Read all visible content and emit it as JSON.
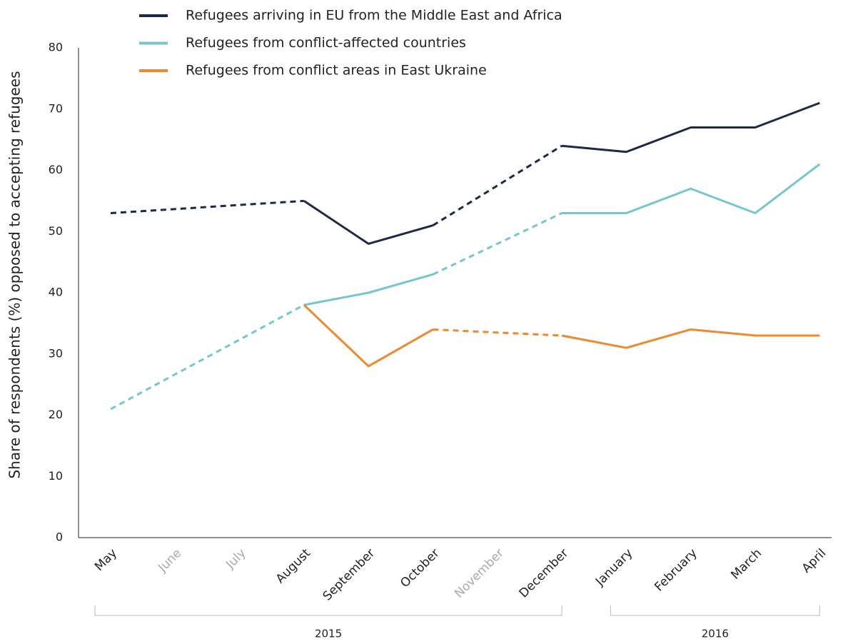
{
  "chart_data": {
    "type": "line",
    "ylabel": "Share of respondents (%) opposed to accepting refugees",
    "categories": [
      "May",
      "June",
      "July",
      "August",
      "September",
      "October",
      "November",
      "December",
      "January",
      "February",
      "March",
      "April"
    ],
    "category_label_colors": [
      "#222222",
      "#aaaaaa",
      "#aaaaaa",
      "#222222",
      "#222222",
      "#222222",
      "#aaaaaa",
      "#222222",
      "#222222",
      "#222222",
      "#222222",
      "#222222"
    ],
    "groups": [
      {
        "label": "2015",
        "start": 0,
        "end": 7
      },
      {
        "label": "2016",
        "start": 8,
        "end": 11
      }
    ],
    "series": [
      {
        "name": "Refugees arriving in EU from the Middle East and Africa",
        "color": "#1b2a47",
        "values": [
          53,
          null,
          null,
          55,
          48,
          51,
          null,
          64,
          63,
          67,
          67,
          71
        ]
      },
      {
        "name": "Refugees from conflict-affected countries",
        "color": "#74c7cc",
        "values": [
          21,
          null,
          null,
          38,
          40,
          43,
          null,
          53,
          53,
          57,
          53,
          61
        ]
      },
      {
        "name": "Refugees from conflict areas in East Ukraine",
        "color": "#ee8a2e",
        "values": [
          null,
          null,
          null,
          38,
          28,
          34,
          null,
          33,
          31,
          34,
          33,
          33
        ]
      }
    ],
    "gap_style": "dashed",
    "ylim": [
      0,
      80
    ],
    "yticks": [
      0,
      10,
      20,
      30,
      40,
      50,
      60,
      70,
      80
    ],
    "grid": false,
    "legend": "top"
  }
}
